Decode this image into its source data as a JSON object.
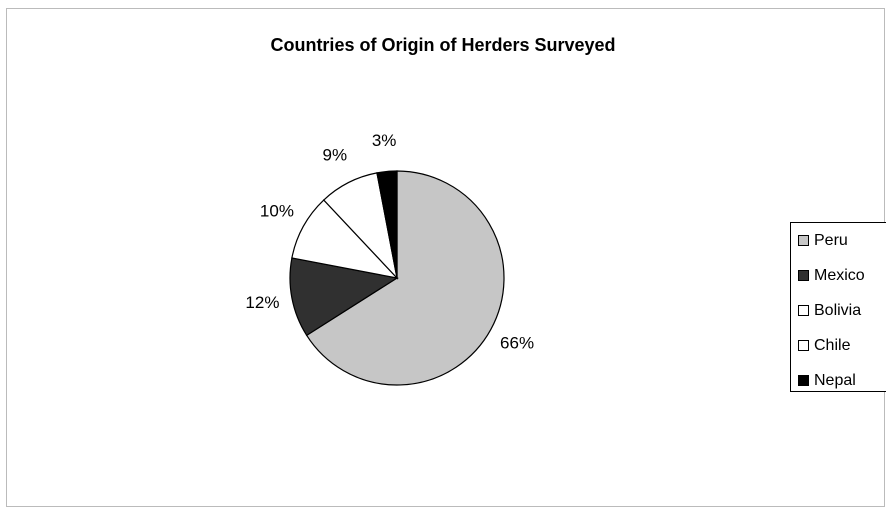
{
  "chart_data": {
    "type": "pie",
    "title": "Countries of Origin of Herders Surveyed",
    "categories": [
      "Peru",
      "Mexico",
      "Bolivia",
      "Chile",
      "Nepal"
    ],
    "values": [
      66,
      12,
      10,
      9,
      3
    ],
    "value_labels": [
      "66%",
      "12%",
      "10%",
      "9%",
      "3%"
    ],
    "colors": [
      "#c6c6c6",
      "#303030",
      "#ffffff",
      "#ffffff",
      "#000000"
    ],
    "legend": "right"
  }
}
